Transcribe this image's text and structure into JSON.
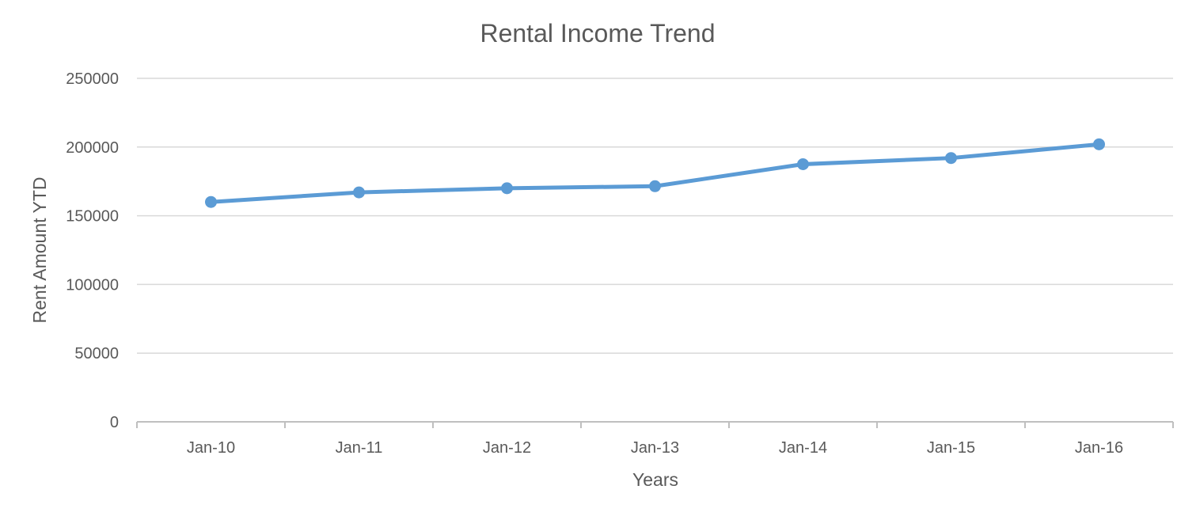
{
  "chart_data": {
    "type": "line",
    "title": "Rental Income Trend",
    "xlabel": "Years",
    "ylabel": "Rent Amount YTD",
    "categories": [
      "Jan-10",
      "Jan-11",
      "Jan-12",
      "Jan-13",
      "Jan-14",
      "Jan-15",
      "Jan-16"
    ],
    "series": [
      {
        "values": [
          160000,
          167000,
          170000,
          171500,
          187500,
          192000,
          202000
        ],
        "color": "#5b9bd5"
      }
    ],
    "ylim": [
      0,
      250000
    ],
    "yticks": [
      "0",
      "50000",
      "100000",
      "150000",
      "200000",
      "250000"
    ],
    "grid": true,
    "legend": "none",
    "markers": true
  }
}
